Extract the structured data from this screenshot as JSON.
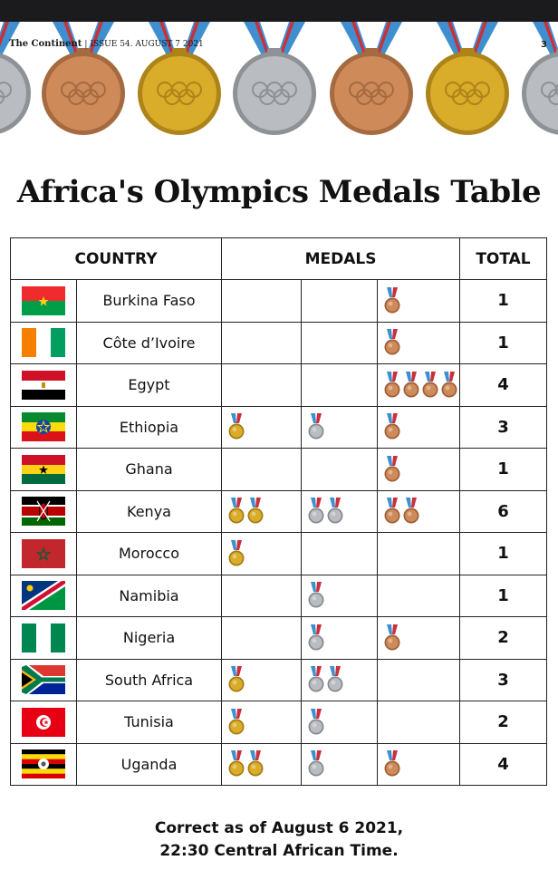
{
  "header": {
    "publication": "The Continent",
    "issue": "ISSUE 54. AUGUST 7 2021",
    "page_number": "3"
  },
  "title": "Africa's Olympics Medals Table",
  "table": {
    "columns": [
      "COUNTRY",
      "MEDALS",
      "TOTAL"
    ],
    "rows": [
      {
        "country": "Burkina Faso",
        "flag": "burkina-faso",
        "gold": 0,
        "silver": 0,
        "bronze": 1,
        "total": "1"
      },
      {
        "country": "Côte d’Ivoire",
        "flag": "cote-divoire",
        "gold": 0,
        "silver": 0,
        "bronze": 1,
        "total": "1"
      },
      {
        "country": "Egypt",
        "flag": "egypt",
        "gold": 0,
        "silver": 0,
        "bronze": 4,
        "total": "4"
      },
      {
        "country": "Ethiopia",
        "flag": "ethiopia",
        "gold": 1,
        "silver": 1,
        "bronze": 1,
        "total": "3"
      },
      {
        "country": "Ghana",
        "flag": "ghana",
        "gold": 0,
        "silver": 0,
        "bronze": 1,
        "total": "1"
      },
      {
        "country": "Kenya",
        "flag": "kenya",
        "gold": 2,
        "silver": 2,
        "bronze": 2,
        "total": "6"
      },
      {
        "country": "Morocco",
        "flag": "morocco",
        "gold": 1,
        "silver": 0,
        "bronze": 0,
        "total": "1"
      },
      {
        "country": "Namibia",
        "flag": "namibia",
        "gold": 0,
        "silver": 1,
        "bronze": 0,
        "total": "1"
      },
      {
        "country": "Nigeria",
        "flag": "nigeria",
        "gold": 0,
        "silver": 1,
        "bronze": 1,
        "total": "2"
      },
      {
        "country": "South Africa",
        "flag": "south-africa",
        "gold": 1,
        "silver": 2,
        "bronze": 0,
        "total": "3"
      },
      {
        "country": "Tunisia",
        "flag": "tunisia",
        "gold": 1,
        "silver": 1,
        "bronze": 0,
        "total": "2"
      },
      {
        "country": "Uganda",
        "flag": "uganda",
        "gold": 2,
        "silver": 1,
        "bronze": 1,
        "total": "4"
      }
    ]
  },
  "footer": {
    "line1": "Correct as of August 6 2021,",
    "line2": "22:30 Central African Time."
  },
  "colors": {
    "gold": "#d9ac2a",
    "silver": "#b9bcc1",
    "bronze": "#cf8a5a",
    "ribbon_blue": "#3f8fcf",
    "ribbon_red": "#c9303c"
  }
}
